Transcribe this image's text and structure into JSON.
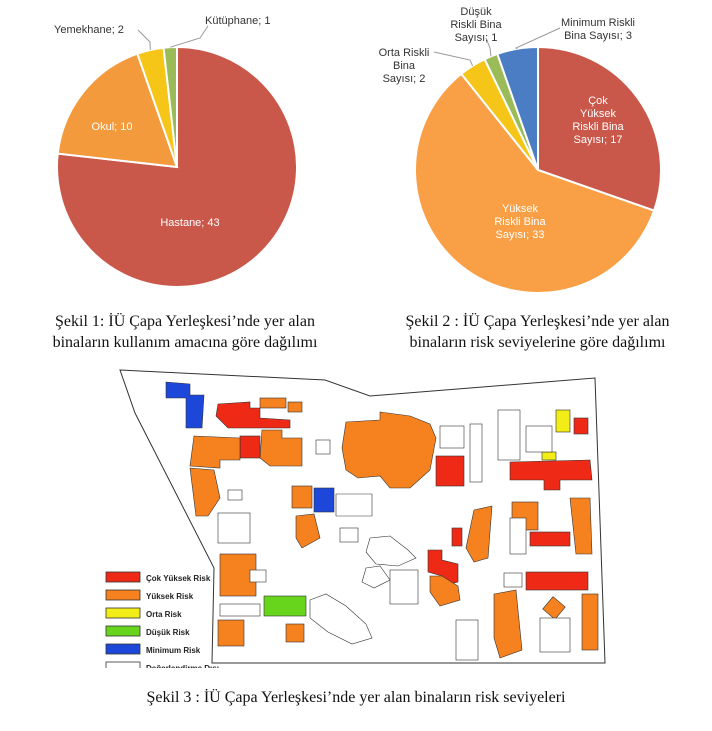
{
  "chart_data": [
    {
      "type": "pie",
      "categories": [
        "Hastane",
        "Okul",
        "Yemekhane",
        "Kütüphane"
      ],
      "values": [
        43,
        10,
        2,
        1
      ],
      "labels": [
        "Hastane; 43",
        "Okul; 10",
        "Yemekhane; 2",
        "Kütüphane; 1"
      ],
      "colors": [
        "#c9584a",
        "#f39a3c",
        "#f5c518",
        "#9bbb59"
      ],
      "title": ""
    },
    {
      "type": "pie",
      "categories": [
        "Çok Yüksek Riskli Bina Sayısı",
        "Yüksek Riskli Bina Sayısı",
        "Orta Riskli Bina Sayısı",
        "Düşük Riskli Bina Sayısı",
        "Minimum Riskli Bina Sayısı"
      ],
      "values": [
        17,
        33,
        2,
        1,
        3
      ],
      "label_lines": [
        [
          "Çok",
          "Yüksek",
          "Riskli Bina",
          "Sayısı; 17"
        ],
        [
          "Yüksek",
          "Riskli Bina",
          "Sayısı; 33"
        ],
        [
          "Orta Riskli",
          "Bina",
          "Sayısı; 2"
        ],
        [
          "Düşük",
          "Riskli Bina",
          "Sayısı; 1"
        ],
        [
          "Minimum Riskli",
          "Bina Sayısı; 3"
        ]
      ],
      "colors": [
        "#c9584a",
        "#f9a047",
        "#f5c518",
        "#9bbb59",
        "#4a7dc4"
      ],
      "title": ""
    }
  ],
  "captions": {
    "fig1_line1": "Şekil 1: İÜ Çapa Yerleşkesi’nde yer alan",
    "fig1_line2": "binaların kullanım amacına göre dağılımı",
    "fig2_line1": "Şekil 2 : İÜ Çapa Yerleşkesi’nde yer alan",
    "fig2_line2": "binaların risk seviyelerine göre dağılımı",
    "fig3": "Şekil 3 : İÜ Çapa Yerleşkesi’nde yer alan binaların risk seviyeleri"
  },
  "map_legend": {
    "items": [
      {
        "label": "Çok Yüksek Risk",
        "color": "#ee2a17"
      },
      {
        "label": "Yüksek Risk",
        "color": "#f5821f"
      },
      {
        "label": "Orta Risk",
        "color": "#f2ec17"
      },
      {
        "label": "Düşük Risk",
        "color": "#66d51c"
      },
      {
        "label": "Minimum Risk",
        "color": "#1d47d8"
      },
      {
        "label": "Değerlendirme Dışı",
        "color": "#ffffff"
      }
    ]
  }
}
